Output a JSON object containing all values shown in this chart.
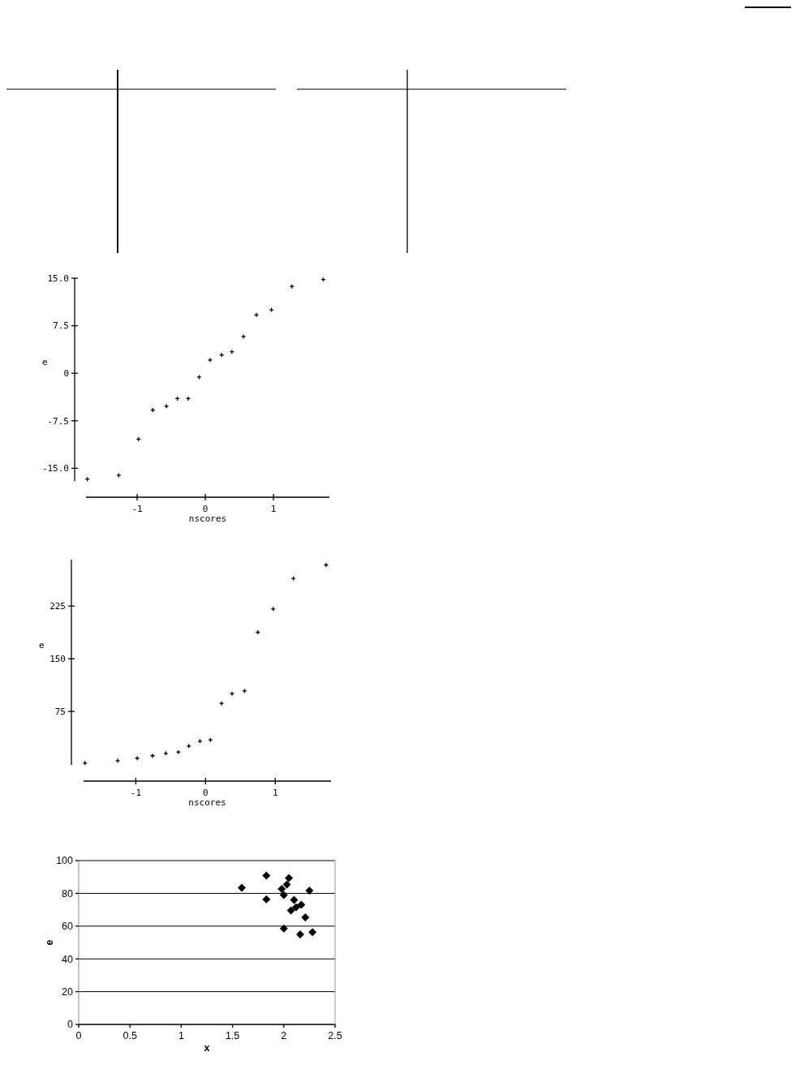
{
  "chart_data": [
    {
      "type": "scatter",
      "xlabel": "nscores",
      "ylabel": "e",
      "marker": "cross",
      "xlim": [
        -1.75,
        1.82
      ],
      "ylim": [
        -17,
        15
      ],
      "xticks": [
        -1,
        0,
        1
      ],
      "yticks": [
        {
          "value": 15,
          "label": "15.0"
        },
        7.5,
        0,
        -7.5,
        {
          "value": -15,
          "label": "-15.0"
        }
      ],
      "grid": false,
      "series": [
        {
          "color": "#000000",
          "x": [
            -1.73,
            -1.27,
            -0.98,
            -0.77,
            -0.57,
            -0.41,
            -0.25,
            -0.09,
            0.07,
            0.24,
            0.39,
            0.56,
            0.75,
            0.97,
            1.27,
            1.73
          ],
          "values": [
            -16.7,
            -16.1,
            -10.4,
            -5.8,
            -5.2,
            -4.0,
            -4.0,
            -0.6,
            2.1,
            2.9,
            3.4,
            5.8,
            9.2,
            10.0,
            13.7,
            14.8
          ]
        }
      ]
    },
    {
      "type": "scatter",
      "xlabel": "nscores",
      "ylabel": "e",
      "marker": "cross",
      "xlim": [
        -1.75,
        1.8
      ],
      "ylim": [
        -1,
        291
      ],
      "xticks": [
        -1,
        0,
        1
      ],
      "yticks": [
        225,
        150,
        75
      ],
      "grid": false,
      "series": [
        {
          "color": "#000000",
          "x": [
            -1.73,
            -1.26,
            -0.98,
            -0.76,
            -0.57,
            -0.39,
            -0.24,
            -0.08,
            0.07,
            0.23,
            0.38,
            0.56,
            0.75,
            0.97,
            1.26,
            1.73
          ],
          "values": [
            1.5,
            5,
            8.5,
            12,
            15.4,
            17.3,
            25.8,
            32.7,
            34.6,
            86.5,
            100.4,
            104.2,
            187.7,
            220.8,
            264.2,
            283.5
          ]
        }
      ]
    },
    {
      "type": "scatter",
      "xlabel": "x",
      "ylabel": "e",
      "marker": "diamond",
      "xlim": [
        0,
        2.5
      ],
      "ylim": [
        0,
        100
      ],
      "xticks": [
        0,
        0.5,
        1,
        1.5,
        2,
        2.5
      ],
      "yticks": [
        0,
        20,
        40,
        60,
        80,
        100
      ],
      "grid": "y",
      "series": [
        {
          "color": "#000000",
          "x": [
            1.59,
            1.83,
            1.83,
            1.98,
            2.0,
            2.03,
            2.05,
            2.1,
            2.07,
            2.12,
            2.17,
            2.25,
            2.21,
            2.0,
            2.16,
            2.28
          ],
          "values": [
            83.4,
            90.8,
            76.3,
            82.7,
            78.9,
            85.4,
            89.3,
            76,
            69.6,
            71.5,
            73,
            81.7,
            65.3,
            58.6,
            54.9,
            56.3
          ]
        }
      ]
    }
  ]
}
